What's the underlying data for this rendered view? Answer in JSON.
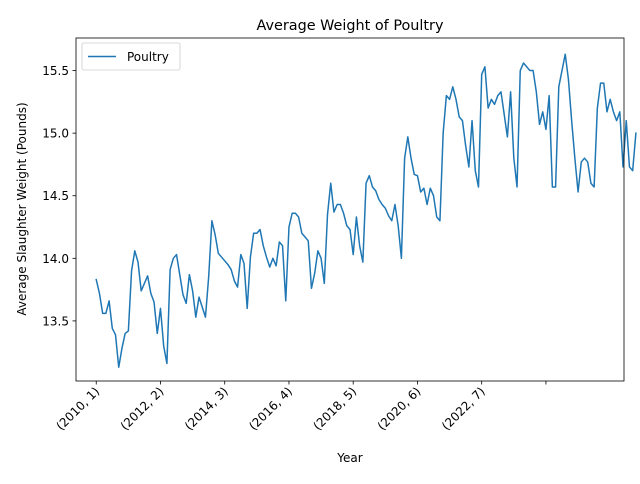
{
  "chart_data": {
    "type": "line",
    "title": "Average Weight of Poultry",
    "xlabel": "Year",
    "ylabel": "Average Slaughter Weight (Pounds)",
    "xlim": [
      -6.3,
      164.3
    ],
    "ylim": [
      13.02,
      15.76
    ],
    "yticks": [
      13.5,
      14.0,
      14.5,
      15.0,
      15.5
    ],
    "xticks": [
      {
        "index": 0,
        "label": "(2010, 1)"
      },
      {
        "index": 20,
        "label": "(2012, 2)"
      },
      {
        "index": 40,
        "label": "(2014, 3)"
      },
      {
        "index": 60,
        "label": "(2016, 4)"
      },
      {
        "index": 80,
        "label": "(2018, 5)"
      },
      {
        "index": 100,
        "label": "(2020, 6)"
      },
      {
        "index": 120,
        "label": "(2022, 7)"
      },
      {
        "index": 140,
        "label": ""
      }
    ],
    "legend": {
      "position": "top-left",
      "entries": [
        "Poultry"
      ]
    },
    "grid": false,
    "colors": {
      "series": "#1f77b4"
    },
    "series": [
      {
        "name": "Poultry",
        "values": [
          13.83,
          13.72,
          13.56,
          13.56,
          13.66,
          13.44,
          13.39,
          13.13,
          13.28,
          13.4,
          13.42,
          13.9,
          14.06,
          13.97,
          13.74,
          13.8,
          13.86,
          13.72,
          13.65,
          13.4,
          13.6,
          13.3,
          13.16,
          13.91,
          14.0,
          14.03,
          13.87,
          13.71,
          13.64,
          13.87,
          13.74,
          13.53,
          13.69,
          13.61,
          13.53,
          13.85,
          14.3,
          14.19,
          14.04,
          14.01,
          13.98,
          13.95,
          13.91,
          13.82,
          13.77,
          14.03,
          13.96,
          13.6,
          14.01,
          14.2,
          14.2,
          14.23,
          14.1,
          14.01,
          13.93,
          14.0,
          13.94,
          14.13,
          14.1,
          13.66,
          14.25,
          14.36,
          14.36,
          14.33,
          14.2,
          14.17,
          14.14,
          13.76,
          13.88,
          14.06,
          14.0,
          13.8,
          14.35,
          14.6,
          14.37,
          14.43,
          14.43,
          14.36,
          14.26,
          14.23,
          14.03,
          14.33,
          14.1,
          13.97,
          14.6,
          14.66,
          14.57,
          14.54,
          14.47,
          14.43,
          14.4,
          14.34,
          14.3,
          14.43,
          14.26,
          14.0,
          14.8,
          14.97,
          14.8,
          14.67,
          14.66,
          14.53,
          14.56,
          14.43,
          14.56,
          14.5,
          14.33,
          14.3,
          15.0,
          15.3,
          15.27,
          15.37,
          15.27,
          15.13,
          15.1,
          14.9,
          14.73,
          15.1,
          14.7,
          14.57,
          15.47,
          15.53,
          15.2,
          15.27,
          15.23,
          15.3,
          15.33,
          15.15,
          14.97,
          15.33,
          14.8,
          14.57,
          15.5,
          15.56,
          15.53,
          15.5,
          15.5,
          15.33,
          15.07,
          15.17,
          15.03,
          15.3,
          14.57,
          14.57,
          15.37,
          15.5,
          15.63,
          15.43,
          15.1,
          14.8,
          14.53,
          14.77,
          14.8,
          14.77,
          14.6,
          14.57,
          15.2,
          15.4,
          15.4,
          15.17,
          15.27,
          15.17,
          15.1,
          15.17,
          14.73,
          15.1,
          14.73,
          14.7,
          15.0
        ]
      }
    ]
  }
}
